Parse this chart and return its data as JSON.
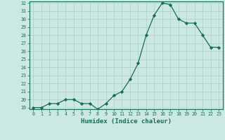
{
  "x": [
    0,
    1,
    2,
    3,
    4,
    5,
    6,
    7,
    8,
    9,
    10,
    11,
    12,
    13,
    14,
    15,
    16,
    17,
    18,
    19,
    20,
    21,
    22,
    23
  ],
  "y": [
    19.0,
    19.0,
    19.5,
    19.5,
    20.0,
    20.0,
    19.5,
    19.5,
    18.8,
    19.5,
    20.5,
    21.0,
    22.5,
    24.5,
    28.0,
    30.5,
    32.0,
    31.8,
    30.0,
    29.5,
    29.5,
    28.0,
    26.5,
    26.5
  ],
  "xlabel": "Humidex (Indice chaleur)",
  "ylim": [
    19,
    32
  ],
  "xlim": [
    -0.5,
    23.5
  ],
  "line_color": "#1a6b5a",
  "marker": "D",
  "marker_size": 2.2,
  "bg_color": "#cce8e2",
  "grid_color": "#aacfca",
  "tick_color": "#1a6b5a",
  "label_color": "#1a6b5a",
  "yticks": [
    19,
    20,
    21,
    22,
    23,
    24,
    25,
    26,
    27,
    28,
    29,
    30,
    31,
    32
  ],
  "xticks": [
    0,
    1,
    2,
    3,
    4,
    5,
    6,
    7,
    8,
    9,
    10,
    11,
    12,
    13,
    14,
    15,
    16,
    17,
    18,
    19,
    20,
    21,
    22,
    23
  ]
}
